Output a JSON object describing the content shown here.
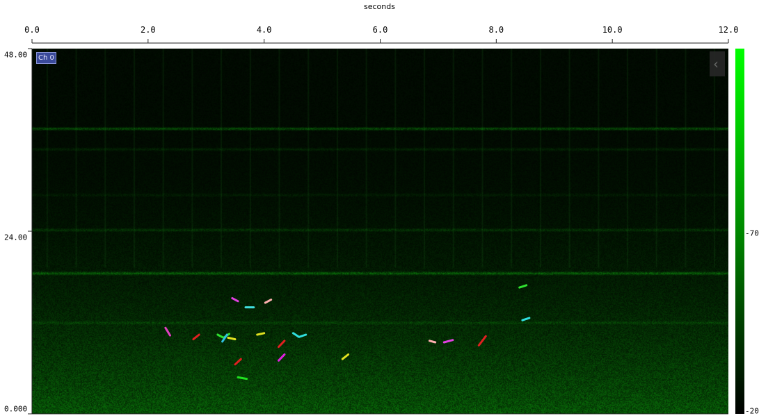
{
  "chart_data": {
    "type": "heatmap",
    "xlabel": "seconds",
    "x_ticks": [
      "0.0",
      "2.0",
      "4.0",
      "6.0",
      "8.0",
      "10.0",
      "12.0"
    ],
    "xlim": [
      0,
      12
    ],
    "y_ticks": [
      "48.00",
      "24.00",
      "0.000"
    ],
    "ylim": [
      0,
      48
    ],
    "channel_label": "Ch 0",
    "colorbar": {
      "ticks": [
        "-70",
        "-20"
      ],
      "colors": [
        "#00ff00",
        "#000000"
      ]
    },
    "horizontal_bands": [
      {
        "y": 37.5,
        "strength": 0.55
      },
      {
        "y": 34.8,
        "strength": 0.2
      },
      {
        "y": 28.8,
        "strength": 0.12
      },
      {
        "y": 24.2,
        "strength": 0.28
      },
      {
        "y": 18.5,
        "strength": 0.6
      },
      {
        "y": 12.0,
        "strength": 0.22
      }
    ],
    "detections": [
      {
        "x": [
          2.3,
          2.38
        ],
        "y": [
          11.3,
          10.3
        ],
        "color": "#e040c0"
      },
      {
        "x": [
          2.78,
          2.88
        ],
        "y": [
          9.8,
          10.4
        ],
        "color": "#e02020"
      },
      {
        "x": [
          3.2,
          3.3,
          3.4
        ],
        "y": [
          10.4,
          10.0,
          10.5
        ],
        "color": "#30e030"
      },
      {
        "x": [
          3.28,
          3.36
        ],
        "y": [
          9.5,
          10.4
        ],
        "color": "#30c0e0"
      },
      {
        "x": [
          3.38,
          3.5
        ],
        "y": [
          10.0,
          9.8
        ],
        "color": "#e0e020"
      },
      {
        "x": [
          3.45,
          3.55
        ],
        "y": [
          15.2,
          14.8
        ],
        "color": "#e040e0"
      },
      {
        "x": [
          3.5,
          3.6
        ],
        "y": [
          6.5,
          7.2
        ],
        "color": "#e02020"
      },
      {
        "x": [
          3.55,
          3.7
        ],
        "y": [
          4.8,
          4.6
        ],
        "color": "#20e020"
      },
      {
        "x": [
          3.68,
          3.82
        ],
        "y": [
          14.0,
          14.0
        ],
        "color": "#40e0e0"
      },
      {
        "x": [
          3.88,
          4.0
        ],
        "y": [
          10.4,
          10.6
        ],
        "color": "#e0e020"
      },
      {
        "x": [
          4.02,
          4.12
        ],
        "y": [
          14.6,
          15.0
        ],
        "color": "#ffb0b0"
      },
      {
        "x": [
          4.25,
          4.35
        ],
        "y": [
          8.8,
          9.6
        ],
        "color": "#e02020"
      },
      {
        "x": [
          4.25,
          4.35
        ],
        "y": [
          7.0,
          7.8
        ],
        "color": "#e020e0"
      },
      {
        "x": [
          4.5,
          4.6,
          4.72
        ],
        "y": [
          10.6,
          10.1,
          10.4
        ],
        "color": "#30e0e0"
      },
      {
        "x": [
          5.35,
          5.45
        ],
        "y": [
          7.2,
          7.8
        ],
        "color": "#e0e020"
      },
      {
        "x": [
          6.85,
          6.95
        ],
        "y": [
          9.6,
          9.4
        ],
        "color": "#ffb0b0"
      },
      {
        "x": [
          7.1,
          7.25
        ],
        "y": [
          9.4,
          9.7
        ],
        "color": "#e040e0"
      },
      {
        "x": [
          7.7,
          7.82
        ],
        "y": [
          9.0,
          10.2
        ],
        "color": "#e02020"
      },
      {
        "x": [
          8.4,
          8.52
        ],
        "y": [
          16.6,
          16.9
        ],
        "color": "#30e030"
      },
      {
        "x": [
          8.45,
          8.57
        ],
        "y": [
          12.3,
          12.6
        ],
        "color": "#30e0e0"
      }
    ]
  }
}
